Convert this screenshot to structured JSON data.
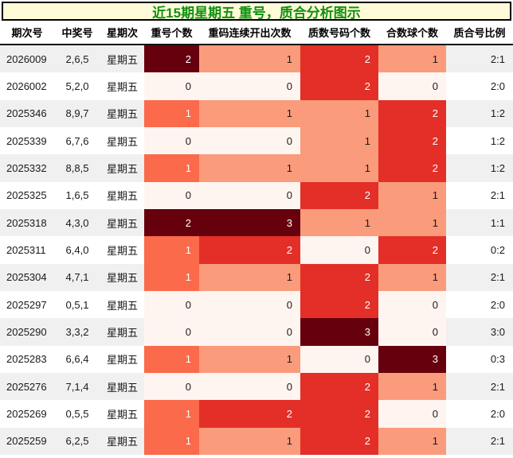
{
  "title": "近15期星期五 重号，质合分析图示",
  "colors": {
    "title_text": "#109010",
    "title_bg": "#fffbd8",
    "title_border": "#000000",
    "header_text": "#111111",
    "row_stripe": "#f0f0f0",
    "heat_level0": "#fff5f0",
    "heat_salmon": "#fa9b7c",
    "heat_tomato": "#fb6a4a",
    "heat_red": "#e32f27",
    "heat_darkest": "#67000d",
    "heat_text_dark": "#1a1a1a",
    "heat_text_light": "#ffffff"
  },
  "chart_data": {
    "type": "heatmap",
    "title": "近15期星期五 重号，质合分析图示",
    "legend_position": "none",
    "grid": false,
    "columns": [
      "期次号",
      "中奖号",
      "星期次",
      "重号个数",
      "重码连续开出次数",
      "质数号码个数",
      "合数球个数",
      "质合号比例"
    ],
    "heat_columns": [
      {
        "index": 3,
        "max": 2
      },
      {
        "index": 4,
        "max": 3
      },
      {
        "index": 5,
        "max": 3
      },
      {
        "index": 6,
        "max": 3
      }
    ],
    "rows": [
      [
        "2026009",
        "2,6,5",
        "星期五",
        2,
        1,
        2,
        1,
        "2:1"
      ],
      [
        "2026002",
        "5,2,0",
        "星期五",
        0,
        0,
        2,
        0,
        "2:0"
      ],
      [
        "2025346",
        "8,9,7",
        "星期五",
        1,
        1,
        1,
        2,
        "1:2"
      ],
      [
        "2025339",
        "6,7,6",
        "星期五",
        0,
        0,
        1,
        2,
        "1:2"
      ],
      [
        "2025332",
        "8,8,5",
        "星期五",
        1,
        1,
        1,
        2,
        "1:2"
      ],
      [
        "2025325",
        "1,6,5",
        "星期五",
        0,
        0,
        2,
        1,
        "2:1"
      ],
      [
        "2025318",
        "4,3,0",
        "星期五",
        2,
        3,
        1,
        1,
        "1:1"
      ],
      [
        "2025311",
        "6,4,0",
        "星期五",
        1,
        2,
        0,
        2,
        "0:2"
      ],
      [
        "2025304",
        "4,7,1",
        "星期五",
        1,
        1,
        2,
        1,
        "2:1"
      ],
      [
        "2025297",
        "0,5,1",
        "星期五",
        0,
        0,
        2,
        0,
        "2:0"
      ],
      [
        "2025290",
        "3,3,2",
        "星期五",
        0,
        0,
        3,
        0,
        "3:0"
      ],
      [
        "2025283",
        "6,6,4",
        "星期五",
        1,
        1,
        0,
        3,
        "0:3"
      ],
      [
        "2025276",
        "7,1,4",
        "星期五",
        0,
        0,
        2,
        1,
        "2:1"
      ],
      [
        "2025269",
        "0,5,5",
        "星期五",
        1,
        2,
        2,
        0,
        "2:0"
      ],
      [
        "2025259",
        "6,2,5",
        "星期五",
        1,
        1,
        2,
        1,
        "2:1"
      ]
    ]
  }
}
